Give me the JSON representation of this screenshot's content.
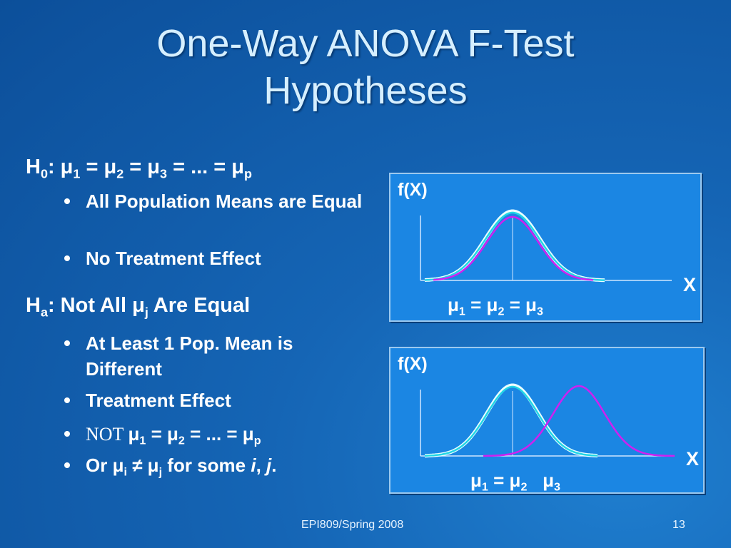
{
  "title": "One-Way ANOVA F-Test Hypotheses",
  "h0": {
    "line": [
      {
        "t": "H"
      },
      {
        "sub": "0"
      },
      {
        "t": ": μ"
      },
      {
        "sub": "1"
      },
      {
        "t": " = μ"
      },
      {
        "sub": "2"
      },
      {
        "t": " = μ"
      },
      {
        "sub": "3"
      },
      {
        "t": " = ... = μ"
      },
      {
        "sub": "p"
      }
    ],
    "bullets": [
      [
        {
          "t": "All Population Means are Equal"
        }
      ],
      [
        {
          "t": "No Treatment Effect"
        }
      ]
    ]
  },
  "ha": {
    "line": [
      {
        "t": "H"
      },
      {
        "sub": "a"
      },
      {
        "t": ": Not All μ"
      },
      {
        "sub": "j"
      },
      {
        "t": " Are Equal"
      }
    ],
    "bullets": [
      [
        {
          "t": "At Least 1 Pop. Mean is Different"
        }
      ],
      [
        {
          "t": "Treatment Effect"
        }
      ],
      [
        {
          "serif": "NOT "
        },
        {
          "t": "μ"
        },
        {
          "sub": "1"
        },
        {
          "t": " = μ"
        },
        {
          "sub": "2"
        },
        {
          "t": " = ... = μ"
        },
        {
          "sub": "p"
        }
      ],
      [
        {
          "t": "Or μ"
        },
        {
          "sub": "i"
        },
        {
          "t": " ≠ μ"
        },
        {
          "sub": "j"
        },
        {
          "t": " for some "
        },
        {
          "em": "i"
        },
        {
          "t": ", "
        },
        {
          "em": "j"
        },
        {
          "t": "."
        }
      ]
    ]
  },
  "charts": [
    {
      "ylabel": "f(X)",
      "xlabel": "X",
      "means": [
        {
          "t": "μ"
        },
        {
          "sub": "1"
        },
        {
          "t": " = μ"
        },
        {
          "sub": "2"
        },
        {
          "t": " = μ"
        },
        {
          "sub": "3"
        }
      ]
    },
    {
      "ylabel": "f(X)",
      "xlabel": "X",
      "means": [
        {
          "t": "μ"
        },
        {
          "sub": "1"
        },
        {
          "t": " = μ"
        },
        {
          "sub": "2"
        },
        {
          "t": "   μ"
        },
        {
          "sub": "3"
        }
      ]
    }
  ],
  "footer": "EPI809/Spring 2008",
  "page": "13"
}
